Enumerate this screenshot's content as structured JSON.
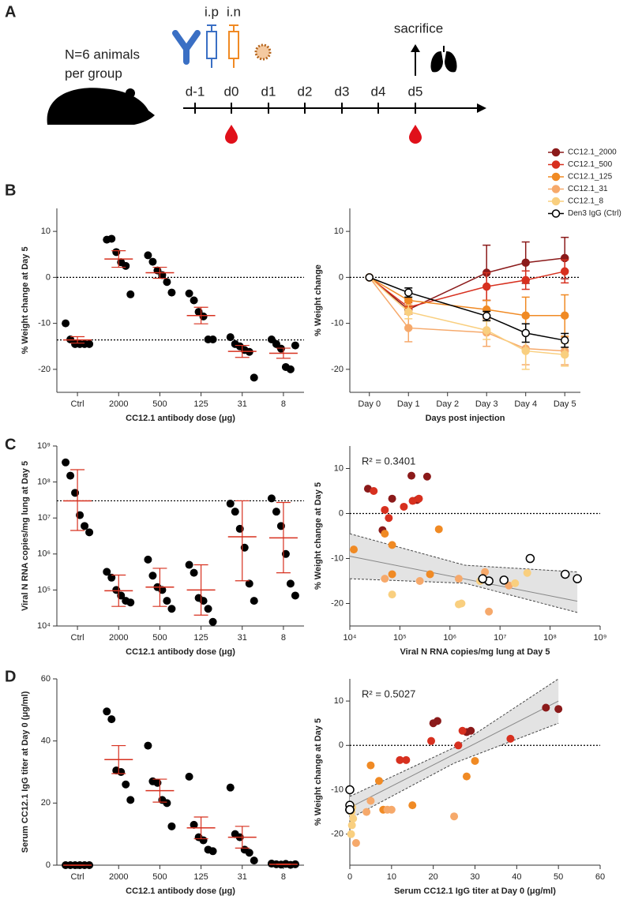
{
  "panel_labels": [
    "A",
    "B",
    "C",
    "D"
  ],
  "schematic": {
    "animals_label": [
      "N=6 animals",
      "per group"
    ],
    "route_ip": "i.p",
    "route_in": "i.n",
    "endpoint": "sacrifice",
    "days": [
      "d-1",
      "d0",
      "d1",
      "d2",
      "d3",
      "d4",
      "d5"
    ]
  },
  "chart_data": [
    {
      "type": "dot",
      "ylabel": "% Weight change at Day 5",
      "xlabel": "CC12.1 antibody dose (μg)",
      "categories": [
        "Ctrl",
        "2000",
        "500",
        "125",
        "31",
        "8"
      ],
      "groups": [
        {
          "values": [
            -10,
            -13.5,
            -14.5,
            -14.5,
            -14.5,
            -14.5
          ],
          "center": -13.6,
          "err": 0.7
        },
        {
          "values": [
            8.2,
            8.4,
            5.5,
            3.3,
            2.5,
            -3.7
          ],
          "center": 4.0,
          "err": 1.8
        },
        {
          "values": [
            4.8,
            3.4,
            1.5,
            0.5,
            -1,
            -3.3
          ],
          "center": 1.0,
          "err": 1.2
        },
        {
          "values": [
            -3.5,
            -5,
            -7.5,
            -8.5,
            -13.5,
            -13.5
          ],
          "center": -8.3,
          "err": 1.8
        },
        {
          "values": [
            -13,
            -14.5,
            -15,
            -15.8,
            -16.2,
            -21.8
          ],
          "center": -16.1,
          "err": 1.3
        },
        {
          "values": [
            -13.5,
            -14.5,
            -15.5,
            -19.5,
            -20,
            -14.8
          ],
          "center": -16.5,
          "err": 1.1
        }
      ],
      "point_color": "#000000",
      "summary_color": "#d7301f",
      "ylim": [
        -25,
        15
      ],
      "yticks": [
        -20,
        -10,
        0,
        10
      ],
      "reference_lines": [
        0,
        -13.6
      ]
    },
    {
      "type": "line",
      "ylabel": "% Weight change",
      "xlabel": "Days post injection",
      "x": [
        0,
        1,
        3,
        4,
        5
      ],
      "xlim": [
        -0.5,
        5.4
      ],
      "xticks": [
        {
          "value": 0,
          "label": "Day 0"
        },
        {
          "value": 1,
          "label": "Day 1"
        },
        {
          "value": 2,
          "label": "Day 2"
        },
        {
          "value": 3,
          "label": "Day 3"
        },
        {
          "value": 4,
          "label": "Day 4"
        },
        {
          "value": 5,
          "label": "Day 5"
        }
      ],
      "series": [
        {
          "name": "CC12.1_2000",
          "color": "#8b1a1a",
          "marker": "filled",
          "values": [
            0,
            -7,
            1,
            3.2,
            4.2
          ],
          "errors": [
            0,
            1,
            6,
            4.5,
            4.5
          ]
        },
        {
          "name": "CC12.1_500",
          "color": "#d7301f",
          "marker": "filled",
          "values": [
            0,
            -6.5,
            -2,
            -0.6,
            1.3
          ],
          "errors": [
            0,
            1,
            3,
            2,
            2.5
          ]
        },
        {
          "name": "CC12.1_125",
          "color": "#f08a24",
          "marker": "filled",
          "values": [
            0,
            -5,
            -7,
            -8.3,
            -8.3
          ],
          "errors": [
            0,
            1.5,
            2,
            4,
            4.5
          ]
        },
        {
          "name": "CC12.1_31",
          "color": "#f6a96b",
          "marker": "filled",
          "values": [
            0,
            -11,
            -12,
            -15.5,
            -16
          ],
          "errors": [
            0,
            3,
            3,
            3.5,
            3
          ]
        },
        {
          "name": "CC12.1_8",
          "color": "#f9cf7f",
          "marker": "filled",
          "values": [
            0,
            -7.5,
            -11.5,
            -16,
            -16.8
          ],
          "errors": [
            0,
            1.5,
            2,
            4,
            2.5
          ]
        },
        {
          "name": "Den3 IgG (Ctrl)",
          "color": "#000000",
          "marker": "open",
          "values": [
            0,
            -3.3,
            -8.4,
            -12.1,
            -13.7
          ],
          "errors": [
            0,
            1,
            1,
            2,
            1.5
          ]
        }
      ],
      "ylim": [
        -25,
        15
      ],
      "yticks": [
        -20,
        -10,
        0,
        10
      ],
      "reference_lines": [
        0
      ]
    },
    {
      "type": "dot",
      "ylabel": "Viral N RNA copies/mg lung at Day 5",
      "xlabel": "CC12.1 antibody dose (μg)",
      "categories": [
        "Ctrl",
        "2000",
        "500",
        "125",
        "31",
        "8"
      ],
      "ylog": true,
      "groups": [
        {
          "values": [
            350000000,
            150000000,
            50000000,
            12000000,
            6000000,
            4000000
          ],
          "center": 30000000,
          "low": 4500000,
          "high": 220000000
        },
        {
          "values": [
            320000,
            220000,
            100000,
            70000,
            50000,
            45000
          ],
          "center": 95000,
          "low": 35000,
          "high": 260000
        },
        {
          "values": [
            700000,
            250000,
            120000,
            100000,
            50000,
            30000
          ],
          "center": 120000,
          "low": 35000,
          "high": 400000
        },
        {
          "values": [
            500000,
            300000,
            60000,
            50000,
            30000,
            13000
          ],
          "center": 100000,
          "low": 20000,
          "high": 500000
        },
        {
          "values": [
            25000000,
            15000000,
            5000000,
            1500000,
            150000,
            50000
          ],
          "center": 3000000,
          "low": 180000,
          "high": 30000000
        },
        {
          "values": [
            35000000,
            15000000,
            6000000,
            1000000,
            150000,
            70000
          ],
          "center": 2800000,
          "low": 300000,
          "high": 27000000
        }
      ],
      "point_color": "#000000",
      "summary_color": "#d7301f",
      "ylim": [
        10000,
        1000000000
      ],
      "yticks": [
        {
          "value": 10000,
          "label": "10⁴"
        },
        {
          "value": 100000,
          "label": "10⁵"
        },
        {
          "value": 1000000,
          "label": "10⁶"
        },
        {
          "value": 10000000,
          "label": "10⁷"
        },
        {
          "value": 100000000,
          "label": "10⁸"
        },
        {
          "value": 1000000000,
          "label": "10⁹"
        }
      ],
      "reference_lines": [
        30000000
      ]
    },
    {
      "type": "scatter",
      "ylabel": "% Weight change at Day 5",
      "xlabel": "Viral N RNA copies/mg lung at Day 5",
      "annotation": "R² = 0.3401",
      "xlog": true,
      "xlim": [
        10000,
        1000000000
      ],
      "xticks": [
        {
          "value": 10000,
          "label": "10⁴"
        },
        {
          "value": 100000,
          "label": "10⁵"
        },
        {
          "value": 1000000,
          "label": "10⁶"
        },
        {
          "value": 10000000,
          "label": "10⁷"
        },
        {
          "value": 100000000,
          "label": "10⁸"
        },
        {
          "value": 1000000000,
          "label": "10⁹"
        }
      ],
      "series": [
        {
          "color": "#8b1a1a",
          "marker": "filled",
          "x": [
            23000,
            170000,
            350000,
            70000,
            220000,
            45000
          ],
          "values": [
            5.5,
            8.4,
            8.2,
            3.3,
            3,
            -3.7
          ]
        },
        {
          "color": "#d7301f",
          "marker": "filled",
          "x": [
            30000,
            120000,
            240000,
            50000,
            180000,
            60000
          ],
          "values": [
            5,
            1.5,
            3.3,
            0.8,
            2.8,
            -1
          ]
        },
        {
          "color": "#f08a24",
          "marker": "filled",
          "x": [
            12000,
            70000,
            400000,
            600000,
            50000,
            70000
          ],
          "values": [
            -8,
            -13.5,
            -13.5,
            -3.5,
            -4.5,
            -7
          ]
        },
        {
          "color": "#f6a96b",
          "marker": "filled",
          "x": [
            50000,
            250000,
            1500000,
            5000000,
            15000000,
            6000000
          ],
          "values": [
            -14.5,
            -15,
            -14.5,
            -13,
            -16,
            -21.8
          ]
        },
        {
          "color": "#f9cf7f",
          "marker": "filled",
          "x": [
            70000,
            1500000,
            1700000,
            4000000,
            35000000,
            20000000
          ],
          "values": [
            -18,
            -20.2,
            -20,
            -15,
            -13.2,
            -15.5
          ]
        },
        {
          "color": "#000000",
          "marker": "open",
          "x": [
            40000000,
            200000000,
            350000000,
            6000000,
            4500000,
            12000000
          ],
          "values": [
            -10,
            -13.5,
            -14.5,
            -15,
            -14.5,
            -14.8
          ]
        }
      ],
      "fit": {
        "x": [
          10000,
          350000000
        ],
        "y": [
          -9.5,
          -19.5
        ]
      },
      "band": {
        "x": [
          10000,
          2000000,
          350000000
        ],
        "upper": [
          -4.5,
          -11.5,
          -13
        ],
        "lower": [
          -14.5,
          -15.5,
          -22
        ]
      },
      "ylim": [
        -25,
        15
      ],
      "yticks": [
        -20,
        -10,
        0,
        10
      ],
      "reference_lines": [
        0
      ]
    },
    {
      "type": "dot",
      "ylabel": "Serum CC12.1 IgG titer at Day 0 (μg/ml)",
      "xlabel": "CC12.1 antibody dose (μg)",
      "categories": [
        "Ctrl",
        "2000",
        "500",
        "125",
        "31",
        "8"
      ],
      "groups": [
        {
          "values": [
            0,
            0,
            0,
            0,
            0,
            0
          ],
          "center": 0,
          "err": 0
        },
        {
          "values": [
            49.5,
            47,
            30.5,
            30,
            26,
            21
          ],
          "center": 34,
          "err": 4.5
        },
        {
          "values": [
            38.5,
            27,
            26.5,
            21,
            20,
            12.5
          ],
          "center": 24,
          "err": 3.7
        },
        {
          "values": [
            28.5,
            13,
            9,
            8,
            5,
            4.5
          ],
          "center": 12,
          "err": 3.5
        },
        {
          "values": [
            25,
            10,
            9,
            5,
            4,
            1.5
          ],
          "center": 9,
          "err": 3.5
        },
        {
          "values": [
            0.5,
            0.3,
            0.2,
            0.4,
            0.1,
            0.3
          ],
          "center": 0.3,
          "err": 0.1
        }
      ],
      "point_color": "#000000",
      "summary_color": "#d7301f",
      "ylim": [
        0,
        60
      ],
      "yticks": [
        0,
        20,
        40,
        60
      ]
    },
    {
      "type": "scatter",
      "ylabel": "% Weight change at Day 5",
      "xlabel": "Serum CC12.1 IgG titer at Day 0 (μg/ml)",
      "annotation": "R² = 0.5027",
      "xlim": [
        0,
        60
      ],
      "xticks": [
        0,
        10,
        20,
        30,
        40,
        50,
        60
      ],
      "series": [
        {
          "color": "#8b1a1a",
          "marker": "filled",
          "x": [
            47,
            50,
            21,
            20,
            29,
            28
          ],
          "values": [
            8.5,
            8.2,
            5.5,
            5,
            3.3,
            3
          ]
        },
        {
          "color": "#d7301f",
          "marker": "filled",
          "x": [
            38.5,
            27,
            26,
            12,
            13.5,
            19.5
          ],
          "values": [
            1.5,
            3.3,
            0,
            -3.3,
            -3.3,
            1
          ]
        },
        {
          "color": "#f08a24",
          "marker": "filled",
          "x": [
            28,
            5,
            30,
            15,
            7,
            8
          ],
          "values": [
            -7,
            -4.5,
            -3.5,
            -13.5,
            -8,
            -14.5
          ]
        },
        {
          "color": "#f6a96b",
          "marker": "filled",
          "x": [
            25,
            10,
            9,
            5,
            4,
            1.5
          ],
          "values": [
            -16,
            -14.5,
            -14.5,
            -12.5,
            -15,
            -22
          ]
        },
        {
          "color": "#f9cf7f",
          "marker": "filled",
          "x": [
            0.5,
            0.3,
            0.4,
            0.2,
            0.6,
            0.8
          ],
          "values": [
            -18,
            -20,
            -15,
            -13.5,
            -14,
            -16.5
          ]
        },
        {
          "color": "#000000",
          "marker": "open",
          "x": [
            0,
            0,
            0,
            0,
            0,
            0
          ],
          "values": [
            -10,
            -13.5,
            -14.5,
            -14.5,
            -14.5,
            -14.5
          ]
        }
      ],
      "fit": {
        "x": [
          0,
          50
        ],
        "y": [
          -14,
          10
        ]
      },
      "band": {
        "x": [
          0,
          25,
          50
        ],
        "upper": [
          -11.5,
          -0.5,
          15
        ],
        "lower": [
          -16.5,
          -4,
          5
        ]
      },
      "ylim": [
        -27,
        15
      ],
      "yticks": [
        -20,
        -10,
        0,
        10
      ],
      "reference_lines": [
        0
      ]
    }
  ]
}
